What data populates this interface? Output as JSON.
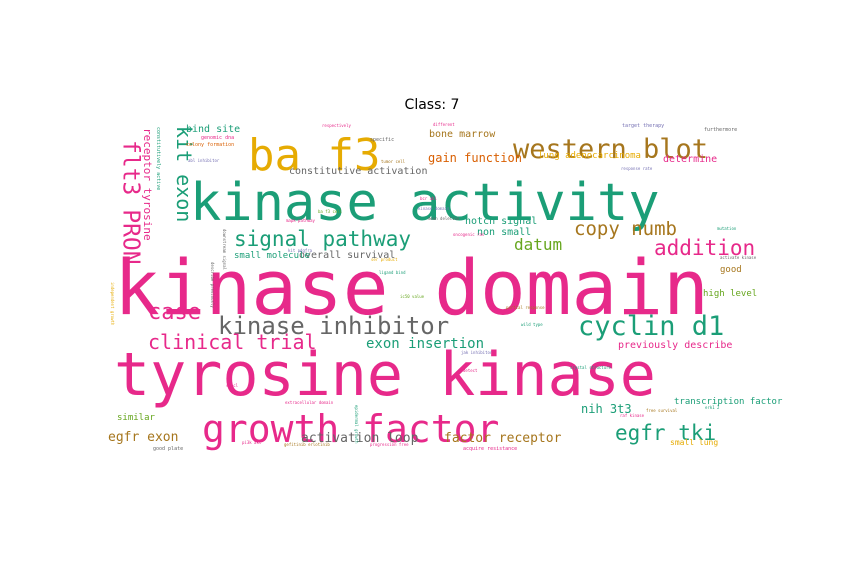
{
  "chart_data": {
    "type": "wordcloud",
    "title": "Class: 7",
    "palette": {
      "pink": "#e7298a",
      "teal": "#1b9e77",
      "gold": "#e6ab02",
      "brown": "#a6761d",
      "gray": "#666666",
      "green": "#66a61e",
      "orange": "#d95f02",
      "purple": "#7570b3"
    },
    "words": [
      {
        "text": "kinase domain",
        "color": "#e7298a"
      },
      {
        "text": "tyrosine kinase",
        "color": "#e7298a"
      },
      {
        "text": "kinase activity",
        "color": "#1b9e77"
      },
      {
        "text": "ba f3",
        "color": "#e6ab02"
      },
      {
        "text": "growth factor",
        "color": "#e7298a"
      },
      {
        "text": "western blot",
        "color": "#a6761d"
      },
      {
        "text": "flt3 PRON",
        "color": "#e7298a"
      },
      {
        "text": "kinase inhibitor",
        "color": "#666666"
      },
      {
        "text": "cyclin d1",
        "color": "#1b9e77"
      },
      {
        "text": "signal pathway",
        "color": "#1b9e77"
      },
      {
        "text": "kit exon",
        "color": "#1b9e77"
      },
      {
        "text": "copy numb",
        "color": "#a6761d"
      },
      {
        "text": "egfr tki",
        "color": "#1b9e77"
      },
      {
        "text": "addition",
        "color": "#e7298a"
      },
      {
        "text": "case",
        "color": "#e7298a"
      },
      {
        "text": "clinical trial",
        "color": "#e7298a"
      },
      {
        "text": "datum",
        "color": "#66a61e"
      },
      {
        "text": "exon insertion",
        "color": "#1b9e77"
      },
      {
        "text": "activation loop",
        "color": "#666666"
      },
      {
        "text": "factor receptor",
        "color": "#a6761d"
      },
      {
        "text": "nih 3t3",
        "color": "#1b9e77"
      },
      {
        "text": "egfr exon",
        "color": "#a6761d"
      },
      {
        "text": "gain function",
        "color": "#d95f02"
      },
      {
        "text": "constitutive activation",
        "color": "#666666"
      },
      {
        "text": "previously describe",
        "color": "#e7298a"
      },
      {
        "text": "receptor tyrosine",
        "color": "#e7298a"
      },
      {
        "text": "bind site",
        "color": "#1b9e77"
      },
      {
        "text": "bone marrow",
        "color": "#a6761d"
      },
      {
        "text": "lung adenocarcinoma",
        "color": "#e6ab02"
      },
      {
        "text": "determine",
        "color": "#e7298a"
      },
      {
        "text": "notch signal",
        "color": "#1b9e77"
      },
      {
        "text": "non small",
        "color": "#1b9e77"
      },
      {
        "text": "overall survival",
        "color": "#666666"
      },
      {
        "text": "small molecule",
        "color": "#1b9e77"
      },
      {
        "text": "high level",
        "color": "#66a61e"
      },
      {
        "text": "good",
        "color": "#a6761d"
      },
      {
        "text": "transcription factor",
        "color": "#1b9e77"
      },
      {
        "text": "similar",
        "color": "#66a61e"
      },
      {
        "text": "small lung",
        "color": "#e6ab02"
      },
      {
        "text": "acquire resistance",
        "color": "#e7298a"
      },
      {
        "text": "good plate",
        "color": "#666666"
      },
      {
        "text": "target therapy",
        "color": "#7570b3"
      },
      {
        "text": "furthermore",
        "color": "#666666"
      },
      {
        "text": "response rate",
        "color": "#7570b3"
      },
      {
        "text": "constitutively active",
        "color": "#1b9e77"
      },
      {
        "text": "colony formation",
        "color": "#d95f02"
      },
      {
        "text": "genomic dna",
        "color": "#e7298a"
      },
      {
        "text": "respectively",
        "color": "#e7298a"
      },
      {
        "text": "specific",
        "color": "#666666"
      },
      {
        "text": "different",
        "color": "#e7298a"
      },
      {
        "text": "tumor cell",
        "color": "#a6761d"
      },
      {
        "text": "mapk pathway",
        "color": "#e7298a"
      },
      {
        "text": "ligand bind",
        "color": "#1b9e77"
      },
      {
        "text": "kinase domain",
        "color": "#7570b3"
      },
      {
        "text": "bcr abl",
        "color": "#e7298a"
      },
      {
        "text": "ba f3 cell",
        "color": "#66a61e"
      },
      {
        "text": "oncogenic ras",
        "color": "#e7298a"
      },
      {
        "text": "mean deletion",
        "color": "#666666"
      },
      {
        "text": "crystal structure",
        "color": "#1b9e77"
      },
      {
        "text": "partial response",
        "color": "#a6761d"
      },
      {
        "text": "ic50 value",
        "color": "#66a61e"
      },
      {
        "text": "free survival",
        "color": "#a6761d"
      },
      {
        "text": "erk1 2",
        "color": "#1b9e77"
      },
      {
        "text": "raf kinase",
        "color": "#e7298a"
      },
      {
        "text": "pi3k akt",
        "color": "#e7298a"
      },
      {
        "text": "gefitinib erlotinib",
        "color": "#a6761d"
      },
      {
        "text": "progression free",
        "color": "#e7298a"
      },
      {
        "text": "extracellular domain",
        "color": "#e7298a"
      },
      {
        "text": "epidermal growth",
        "color": "#1b9e77"
      },
      {
        "text": "abl inhibitor",
        "color": "#7570b3"
      },
      {
        "text": "independent growth",
        "color": "#e6ab02"
      },
      {
        "text": "describe previously",
        "color": "#666666"
      },
      {
        "text": "downstream signal",
        "color": "#666666"
      },
      {
        "text": "detect",
        "color": "#e7298a"
      },
      {
        "text": "ser product",
        "color": "#e6ab02"
      },
      {
        "text": "wild type",
        "color": "#1b9e77"
      },
      {
        "text": "kit pdgfra",
        "color": "#7570b3"
      },
      {
        "text": "activate kinase",
        "color": "#666666"
      },
      {
        "text": "jak inhibitor",
        "color": "#7570b3"
      },
      {
        "text": "sg cl",
        "color": "#e7298a"
      },
      {
        "text": "mutation",
        "color": "#1b9e77"
      }
    ]
  }
}
